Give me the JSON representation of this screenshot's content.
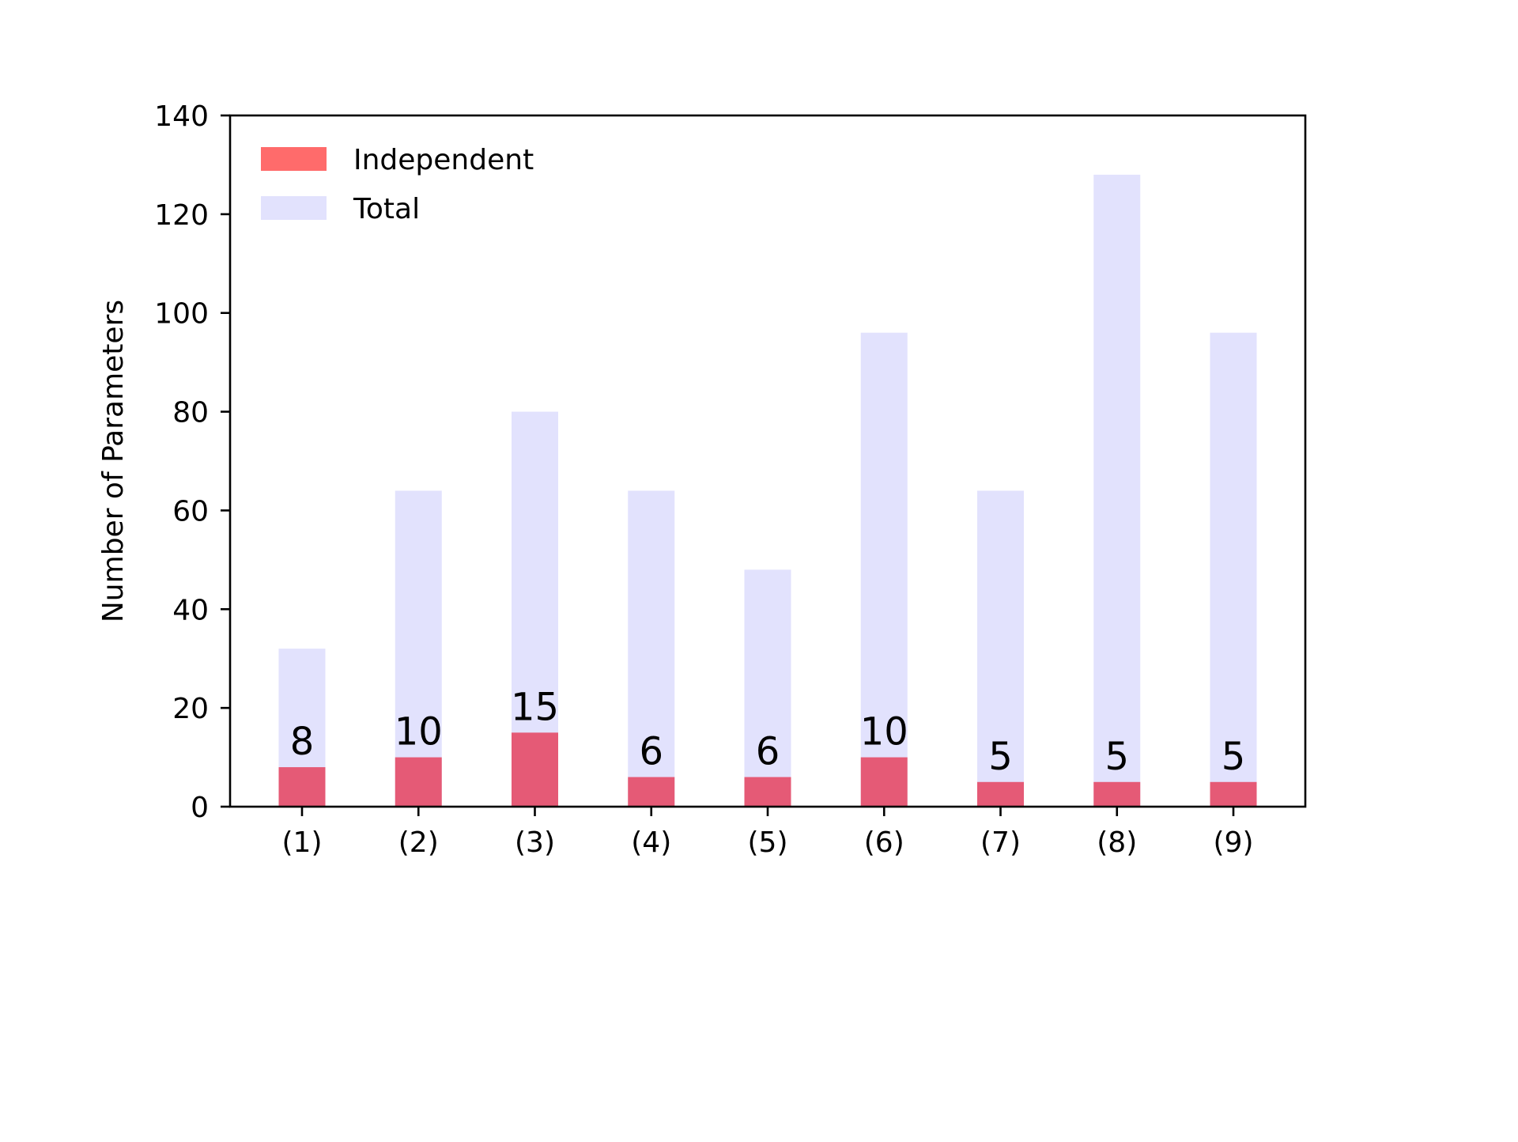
{
  "chart_data": {
    "type": "bar",
    "title": "",
    "xlabel": "",
    "ylabel": "Number of Parameters",
    "categories": [
      "(1)",
      "(2)",
      "(3)",
      "(4)",
      "(5)",
      "(6)",
      "(7)",
      "(8)",
      "(9)"
    ],
    "series": [
      {
        "name": "Independent",
        "values": [
          8,
          10,
          15,
          6,
          6,
          10,
          5,
          5,
          5
        ],
        "color": "#ff6b6b",
        "rendered_color": "#e55a76",
        "data_labels": [
          "8",
          "10",
          "15",
          "6",
          "6",
          "10",
          "5",
          "5",
          "5"
        ]
      },
      {
        "name": "Total",
        "values": [
          32,
          64,
          80,
          64,
          48,
          96,
          64,
          128,
          96
        ],
        "color": "#e2e2fd"
      }
    ],
    "ylim": [
      0,
      140
    ],
    "yticks": [
      0,
      20,
      40,
      60,
      80,
      100,
      120,
      140
    ],
    "ytick_labels": [
      "0",
      "20",
      "40",
      "60",
      "80",
      "100",
      "120",
      "140"
    ],
    "grid": false,
    "legend_position": "top-left"
  }
}
